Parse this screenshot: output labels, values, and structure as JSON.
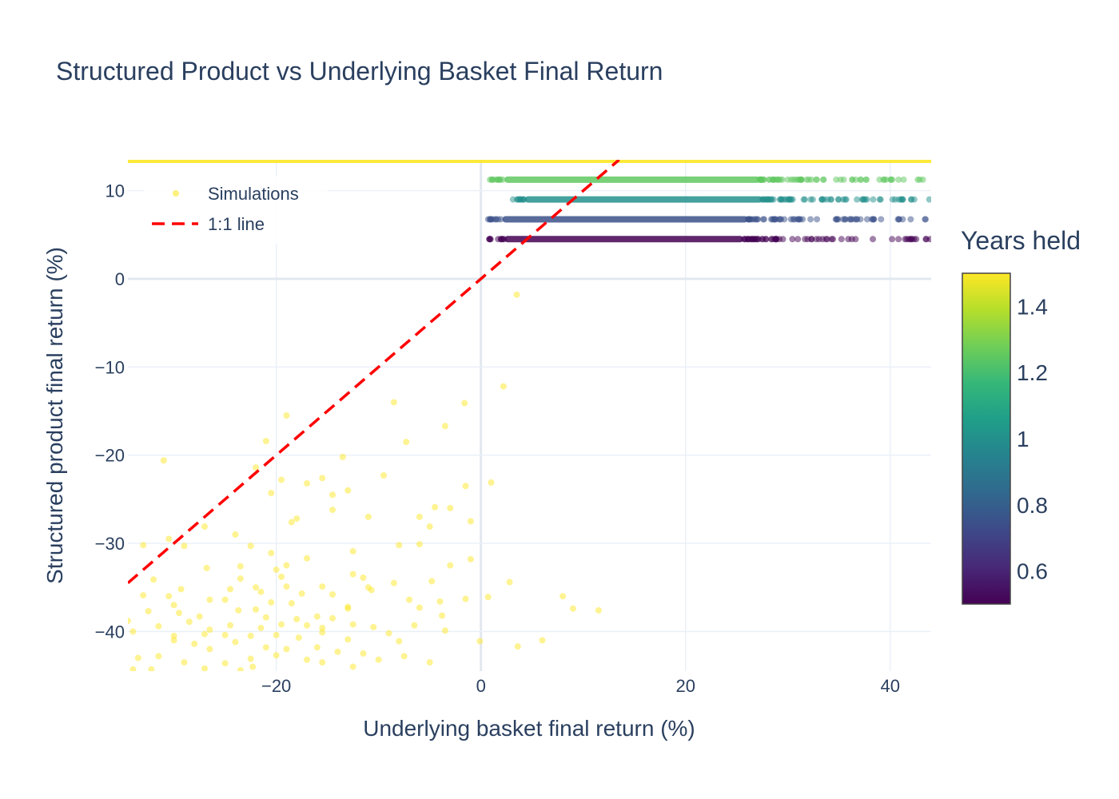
{
  "chart_data": {
    "type": "scatter",
    "title": "Structured Product vs Underlying Basket Final Return",
    "xlabel": "Underlying basket final return (%)",
    "ylabel": "Structured product final return (%)",
    "xlim": [
      -34.5,
      44
    ],
    "ylim": [
      -44.5,
      13.5
    ],
    "xticks": [
      -20,
      0,
      20,
      40
    ],
    "yticks": [
      -40,
      -30,
      -20,
      -10,
      0,
      10
    ],
    "xtick_labels": [
      "−20",
      "0",
      "20",
      "40"
    ],
    "ytick_labels": [
      "−40",
      "−30",
      "−20",
      "−10",
      "0",
      "10"
    ],
    "grid": true,
    "legend": {
      "placement": "top-left",
      "entries": [
        {
          "name": "Simulations",
          "symbol": "marker"
        },
        {
          "name": "1:1 line",
          "symbol": "dashed-line"
        }
      ]
    },
    "colorbar": {
      "title": "Years held",
      "range": [
        0.5,
        1.5
      ],
      "ticks": [
        0.6,
        0.8,
        1,
        1.2,
        1.4
      ],
      "tick_labels": [
        "0.6",
        "0.8",
        "1",
        "1.2",
        "1.4"
      ],
      "colorscale": "Viridis"
    },
    "series": [
      {
        "name": "Simulations",
        "marker_opacity": 0.5,
        "coupon_bands": [
          {
            "years_held": 0.5,
            "y": 4.5,
            "x_range": [
              0.8,
              44
            ]
          },
          {
            "years_held": 0.75,
            "y": 6.75,
            "x_range": [
              0.6,
              44
            ]
          },
          {
            "years_held": 1.0,
            "y": 9.0,
            "x_range": [
              2.8,
              44
            ]
          },
          {
            "years_held": 1.25,
            "y": 11.25,
            "x_range": [
              0.8,
              44
            ]
          },
          {
            "years_held": 1.5,
            "y": 13.5,
            "x_range": [
              -34.5,
              44
            ]
          }
        ],
        "loss_region": {
          "years_held": 1.5,
          "points": [
            [
              3.5,
              -1.8
            ],
            [
              2.2,
              -12.2
            ],
            [
              -8.5,
              -14
            ],
            [
              -1.6,
              -14.1
            ],
            [
              -19,
              -15.5
            ],
            [
              -3.5,
              -16.7
            ],
            [
              -7.3,
              -18.5
            ],
            [
              -21,
              -18.4
            ],
            [
              -13.5,
              -20.2
            ],
            [
              -31,
              -20.6
            ],
            [
              -22,
              -21.4
            ],
            [
              -17,
              -23.2
            ],
            [
              -15.5,
              -22.6
            ],
            [
              -19.5,
              -22.8
            ],
            [
              -9.5,
              -22.3
            ],
            [
              1,
              -23.1
            ],
            [
              -13,
              -24
            ],
            [
              -1.5,
              -23.5
            ],
            [
              -20.5,
              -24.3
            ],
            [
              -4.5,
              -25.9
            ],
            [
              -14.5,
              -24.5
            ],
            [
              -3,
              -26
            ],
            [
              -6,
              -27
            ],
            [
              -14.5,
              -26.2
            ],
            [
              -11,
              -27
            ],
            [
              -18.5,
              -27.6
            ],
            [
              -18,
              -27.2
            ],
            [
              -27,
              -28.1
            ],
            [
              -1,
              -27.5
            ],
            [
              -35,
              -27
            ],
            [
              -35,
              -27.9
            ],
            [
              -5,
              -28.1
            ],
            [
              -24,
              -29
            ],
            [
              -30.5,
              -29.5
            ],
            [
              -8,
              -30.2
            ],
            [
              -6,
              -30.1
            ],
            [
              -33,
              -30.2
            ],
            [
              -29,
              -30.3
            ],
            [
              -22.5,
              -30.3
            ],
            [
              -20.5,
              -31.1
            ],
            [
              -12.5,
              -30.9
            ],
            [
              -17,
              -31.7
            ],
            [
              -1,
              -31.8
            ],
            [
              -26.8,
              -32.8
            ],
            [
              -23.5,
              -32.6
            ],
            [
              -19,
              -32.5
            ],
            [
              -3,
              -32.5
            ],
            [
              -12.5,
              -33.5
            ],
            [
              -32,
              -34.1
            ],
            [
              -19.5,
              -33.8
            ],
            [
              -20,
              -33
            ],
            [
              -11.5,
              -33.9
            ],
            [
              -23.5,
              -34
            ],
            [
              -4.8,
              -34.3
            ],
            [
              -8.5,
              -34.5
            ],
            [
              2.8,
              -34.4
            ],
            [
              -11,
              -35
            ],
            [
              -22,
              -35
            ],
            [
              -19,
              -34.9
            ],
            [
              -15.5,
              -34.9
            ],
            [
              -24.5,
              -35.2
            ],
            [
              -17.5,
              -35.7
            ],
            [
              -29.3,
              -35.2
            ],
            [
              -10.7,
              -35.3
            ],
            [
              -13,
              -37.2
            ],
            [
              -20.5,
              -36.7
            ],
            [
              -22,
              -37.5
            ],
            [
              -18.5,
              -36.8
            ],
            [
              -21.5,
              -35.5
            ],
            [
              -14.5,
              -35.8
            ],
            [
              -25,
              -36.4
            ],
            [
              -30.5,
              -36
            ],
            [
              -33,
              -35.9
            ],
            [
              -26.5,
              -36.4
            ],
            [
              -7,
              -36.4
            ],
            [
              -4,
              -36.6
            ],
            [
              -1.5,
              -36.3
            ],
            [
              -6,
              -37.3
            ],
            [
              -30,
              -37
            ],
            [
              -32.5,
              -37.7
            ],
            [
              -29.5,
              -37.9
            ],
            [
              -27.5,
              -38.3
            ],
            [
              -23.7,
              -37.6
            ],
            [
              -21,
              -38.4
            ],
            [
              -18,
              -38.6
            ],
            [
              -16,
              -38.3
            ],
            [
              -14.5,
              -38.5
            ],
            [
              -13,
              -37.4
            ],
            [
              -3.8,
              -38.2
            ],
            [
              0.7,
              -36.1
            ],
            [
              8,
              -36
            ],
            [
              9,
              -37.4
            ],
            [
              11.5,
              -37.6
            ],
            [
              -34.5,
              -38.8
            ],
            [
              -31.5,
              -39.4
            ],
            [
              -28.5,
              -38.9
            ],
            [
              -26.5,
              -39.8
            ],
            [
              -24.5,
              -39.3
            ],
            [
              -21.5,
              -39.6
            ],
            [
              -19.5,
              -39.2
            ],
            [
              -17,
              -39.3
            ],
            [
              -15.5,
              -39.6
            ],
            [
              -12.5,
              -39.2
            ],
            [
              -10.5,
              -39.5
            ],
            [
              -6.5,
              -39.3
            ],
            [
              -3.5,
              -39.9
            ],
            [
              -34,
              -40
            ],
            [
              -30,
              -40.5
            ],
            [
              -27,
              -40.3
            ],
            [
              -25,
              -40.4
            ],
            [
              -22.5,
              -40.5
            ],
            [
              -20,
              -40.4
            ],
            [
              -17.8,
              -40.7
            ],
            [
              -15.5,
              -40.1
            ],
            [
              -13,
              -40.9
            ],
            [
              -9,
              -40.2
            ],
            [
              -8,
              -41.1
            ],
            [
              -0.1,
              -41.1
            ],
            [
              3.6,
              -41.7
            ],
            [
              6,
              -41
            ],
            [
              -30,
              -41
            ],
            [
              -28,
              -41.4
            ],
            [
              -26.5,
              -42
            ],
            [
              -24,
              -41.2
            ],
            [
              -21,
              -41.8
            ],
            [
              -19,
              -42
            ],
            [
              -16,
              -41.8
            ],
            [
              -14,
              -42.3
            ],
            [
              -11.5,
              -42.5
            ],
            [
              -7.5,
              -42.8
            ],
            [
              -33.5,
              -43
            ],
            [
              -31.5,
              -42.8
            ],
            [
              -29,
              -43.5
            ],
            [
              -25,
              -43.6
            ],
            [
              -22.5,
              -43.1
            ],
            [
              -20,
              -42.7
            ],
            [
              -17,
              -43.2
            ],
            [
              -15.5,
              -43.5
            ],
            [
              -12.5,
              -44
            ],
            [
              -10,
              -43.2
            ],
            [
              -5,
              -43.5
            ],
            [
              -34,
              -44.3
            ],
            [
              -32.2,
              -44.3
            ],
            [
              -27,
              -44.2
            ],
            [
              -23.5,
              -44.4
            ],
            [
              -22.3,
              -44
            ]
          ]
        }
      },
      {
        "name": "1:1 line",
        "style": "dashed",
        "color": "#ff0000",
        "x": [
          -34.5,
          13.5
        ],
        "y": [
          -34.5,
          13.5
        ]
      }
    ]
  }
}
